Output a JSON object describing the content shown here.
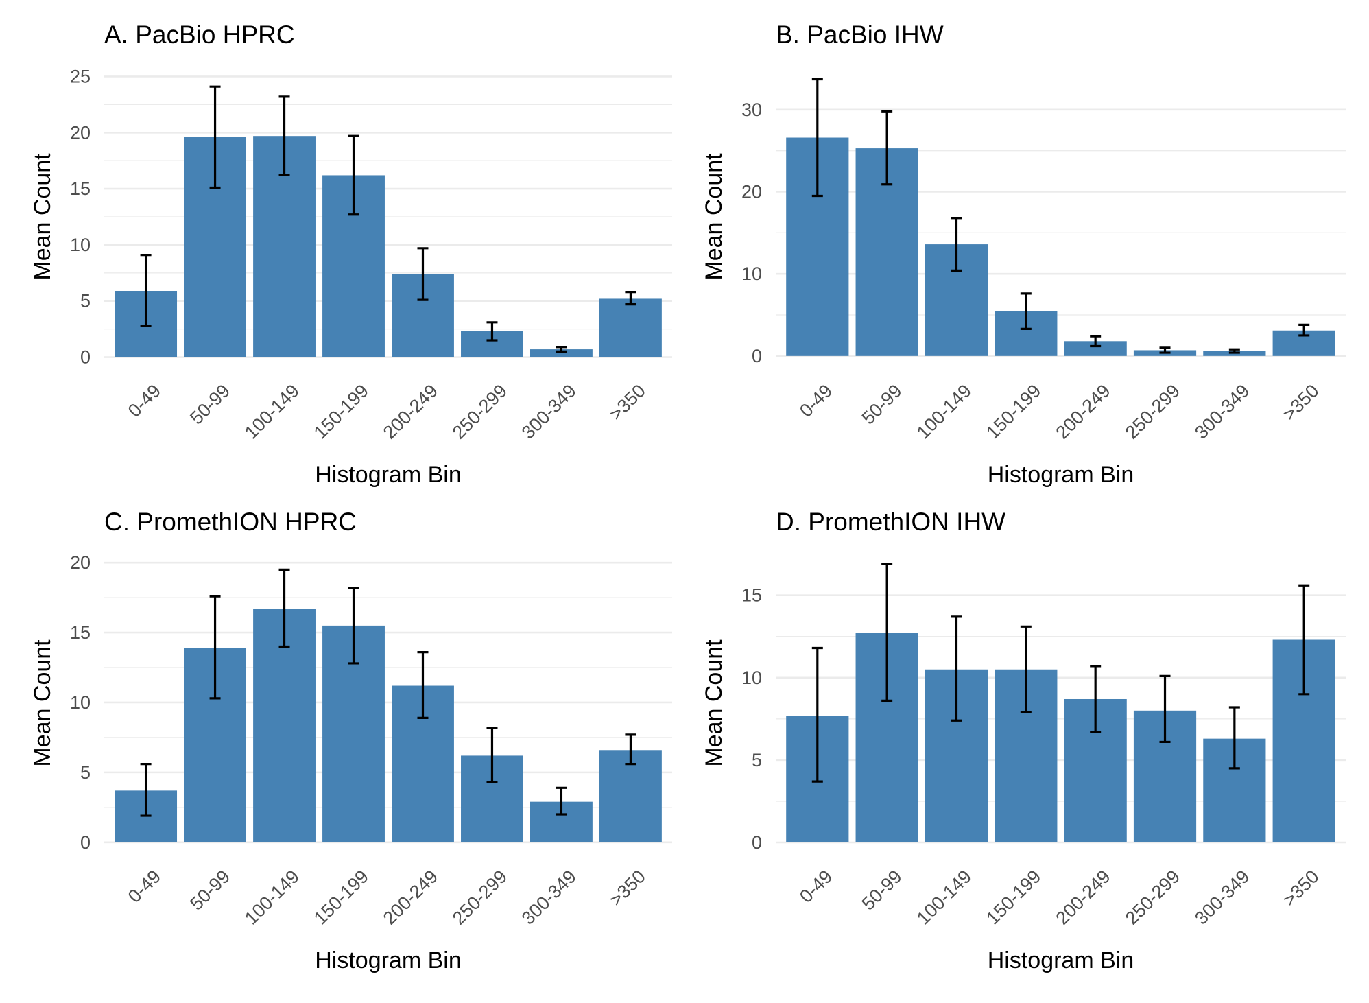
{
  "colors": {
    "bar": "#4682b4",
    "errorbar": "#000000",
    "grid": "#ebebeb",
    "tick_text": "#4d4d4d"
  },
  "chart_data": [
    {
      "type": "bar",
      "title": "A. PacBio HPRC",
      "xlabel": "Histogram Bin",
      "ylabel": "Mean Count",
      "categories": [
        "0-49",
        "50-99",
        "100-149",
        "150-199",
        "200-249",
        "250-299",
        "300-349",
        ">350"
      ],
      "values": [
        5.9,
        19.6,
        19.7,
        16.2,
        7.4,
        2.3,
        0.7,
        5.2
      ],
      "error_low": [
        2.8,
        15.1,
        16.2,
        12.7,
        5.1,
        1.5,
        0.5,
        4.7
      ],
      "error_high": [
        9.1,
        24.1,
        23.2,
        19.7,
        9.7,
        3.1,
        0.9,
        5.8
      ],
      "yticks": [
        0,
        5,
        10,
        15,
        20,
        25
      ],
      "ylim": [
        -0.7,
        25.7
      ],
      "grid": true
    },
    {
      "type": "bar",
      "title": "B. PacBio IHW",
      "xlabel": "Histogram Bin",
      "ylabel": "Mean Count",
      "categories": [
        "0-49",
        "50-99",
        "100-149",
        "150-199",
        "200-249",
        "250-299",
        "300-349",
        ">350"
      ],
      "values": [
        26.6,
        25.3,
        13.6,
        5.5,
        1.8,
        0.7,
        0.6,
        3.1
      ],
      "error_low": [
        19.5,
        20.9,
        10.4,
        3.3,
        1.2,
        0.4,
        0.4,
        2.5
      ],
      "error_high": [
        33.7,
        29.8,
        16.8,
        7.6,
        2.4,
        1.0,
        0.8,
        3.8
      ],
      "yticks": [
        0,
        10,
        20,
        30
      ],
      "ylim": [
        -1.1,
        35.0
      ],
      "grid": true
    },
    {
      "type": "bar",
      "title": "C. PromethION HPRC",
      "xlabel": "Histogram Bin",
      "ylabel": "Mean Count",
      "categories": [
        "0-49",
        "50-99",
        "100-149",
        "150-199",
        "200-249",
        "250-299",
        "300-349",
        ">350"
      ],
      "values": [
        3.7,
        13.9,
        16.7,
        15.5,
        11.2,
        6.2,
        2.9,
        6.6
      ],
      "error_low": [
        1.9,
        10.3,
        14.0,
        12.8,
        8.9,
        4.3,
        2.0,
        5.6
      ],
      "error_high": [
        5.6,
        17.6,
        19.5,
        18.2,
        13.6,
        8.2,
        3.9,
        7.7
      ],
      "yticks": [
        0,
        5,
        10,
        15,
        20
      ],
      "ylim": [
        -0.6,
        20.5
      ],
      "grid": true
    },
    {
      "type": "bar",
      "title": "D. PromethION IHW",
      "xlabel": "Histogram Bin",
      "ylabel": "Mean Count",
      "categories": [
        "0-49",
        "50-99",
        "100-149",
        "150-199",
        "200-249",
        "250-299",
        "300-349",
        ">350"
      ],
      "values": [
        7.7,
        12.7,
        10.5,
        10.5,
        8.7,
        8.0,
        6.3,
        12.3
      ],
      "error_low": [
        3.7,
        8.6,
        7.4,
        7.9,
        6.7,
        6.1,
        4.5,
        9.0
      ],
      "error_high": [
        11.8,
        16.9,
        13.7,
        13.1,
        10.7,
        10.1,
        8.2,
        15.6
      ],
      "yticks": [
        0,
        5,
        10,
        15
      ],
      "ylim": [
        -0.5,
        17.4
      ],
      "grid": true
    }
  ]
}
